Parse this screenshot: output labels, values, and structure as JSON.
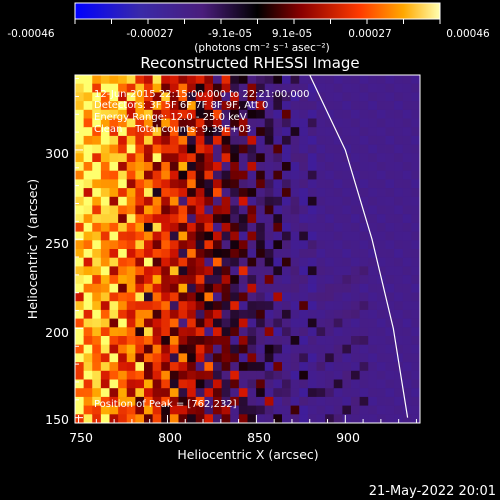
{
  "colorbar": {
    "tick_labels": [
      "-0.00046",
      "-0.00027",
      "-9.1e-05",
      "9.1e-05",
      "0.00027",
      "0.00046"
    ],
    "unit_label": "(photons cm⁻² s⁻¹ asec⁻²)",
    "range": [
      -0.00046,
      0.00046
    ]
  },
  "chart_data": {
    "type": "heatmap",
    "title": "Reconstructed RHESSI Image",
    "xlabel": "Heliocentric X (arcsec)",
    "ylabel": "Heliocentric Y (arcsec)",
    "xlim": [
      748,
      942
    ],
    "ylim": [
      147,
      342
    ],
    "x_ticks": [
      750,
      800,
      850,
      900
    ],
    "y_ticks": [
      150,
      200,
      250,
      300
    ],
    "annotations": [
      "12-Jun-2015 22:15:00.000 to 22:21:00.000",
      "Detectors: 3F 5F 6F 7F 8F 9F, Att 0",
      "Energy Range: 12.0 - 25.0 keV",
      "Clean    Total counts: 9.39E+03"
    ],
    "peak_text": "Position of Peak = [762,232]",
    "peak_position": [
      762,
      232
    ],
    "limb_curve": [
      [
        880,
        342
      ],
      [
        900,
        300
      ],
      [
        915,
        250
      ],
      [
        927,
        200
      ],
      [
        935,
        150
      ]
    ],
    "colors": {
      "limb": "#ffffff",
      "low": "#3f1d9a",
      "high": "#ffff60"
    }
  },
  "footer": {
    "date": "21-May-2022 20:01"
  }
}
